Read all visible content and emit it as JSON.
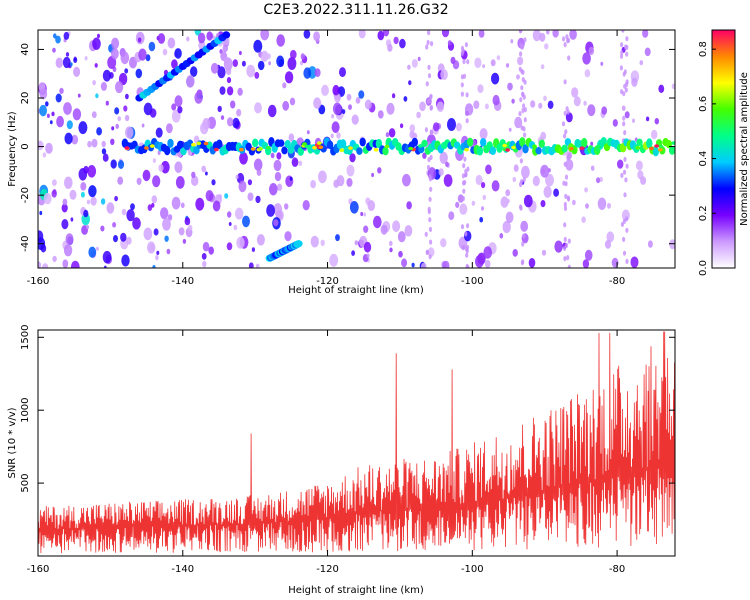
{
  "title": "C2E3.2022.311.11.26.G32",
  "chart_data": [
    {
      "type": "heatmap",
      "xlabel": "Height of straight line (km)",
      "ylabel": "Frequency (Hz)",
      "xlim": [
        -160,
        -72
      ],
      "ylim": [
        -50,
        48
      ],
      "xticks": [
        -160,
        -140,
        -120,
        -100,
        -80
      ],
      "yticks": [
        -40,
        -20,
        0,
        20,
        40
      ],
      "colorbar": {
        "label": "Normalized spectral amplitude",
        "range": [
          0,
          0.87
        ],
        "ticks": [
          0.0,
          0.2,
          0.4,
          0.6,
          0.8
        ],
        "colors": [
          "#ffffff",
          "#cc99ff",
          "#7700ff",
          "#0000ff",
          "#00ccff",
          "#00ff88",
          "#44ff00",
          "#ffff00",
          "#ff8800",
          "#ff0066"
        ]
      },
      "features": [
        {
          "kind": "horizontal band",
          "frequency": 0,
          "x_range": [
            -148,
            -72
          ],
          "peak_amplitude": 0.85
        },
        {
          "kind": "diagonal streak",
          "x_start": -146,
          "y_start": 20,
          "x_end": -134,
          "y_end": 46
        },
        {
          "kind": "diagonal streak",
          "x_start": -128,
          "y_start": -46,
          "x_end": -124,
          "y_end": -40
        }
      ]
    },
    {
      "type": "line",
      "xlabel": "Height of straight line (km)",
      "ylabel": "SNR (10 * v/v)",
      "xlim": [
        -160,
        -72
      ],
      "ylim": [
        0,
        1550
      ],
      "xticks": [
        -160,
        -140,
        -120,
        -100,
        -80
      ],
      "yticks": [
        500,
        1000,
        1500
      ],
      "color": "#ee3333",
      "profile": {
        "x": [
          -160,
          -150,
          -140,
          -130,
          -125,
          -120,
          -115,
          -110,
          -105,
          -100,
          -95,
          -90,
          -85,
          -80,
          -75,
          -72
        ],
        "baseline": [
          180,
          200,
          210,
          220,
          240,
          260,
          300,
          320,
          330,
          360,
          400,
          450,
          500,
          560,
          600,
          620
        ],
        "amplitude": [
          160,
          170,
          180,
          200,
          220,
          260,
          330,
          350,
          360,
          420,
          500,
          560,
          650,
          760,
          850,
          900
        ]
      },
      "spikes": [
        {
          "x": -130.5,
          "y": 840
        },
        {
          "x": -110.5,
          "y": 1390
        },
        {
          "x": -102.8,
          "y": 1280
        },
        {
          "x": -82.5,
          "y": 1530
        },
        {
          "x": -81.0,
          "y": 1530
        },
        {
          "x": -73.5,
          "y": 1540
        }
      ]
    }
  ]
}
